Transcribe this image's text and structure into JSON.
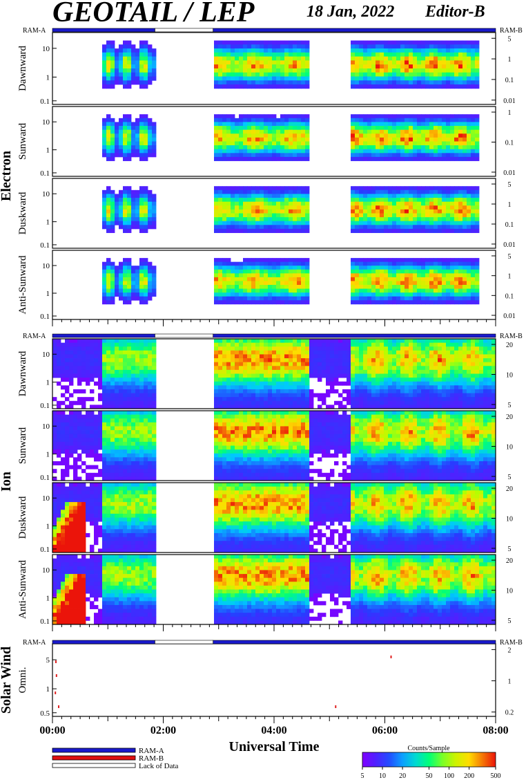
{
  "header": {
    "title": "GEOTAIL / LEP",
    "date": "18 Jan, 2022",
    "editor": "Editor-B"
  },
  "ram_labels": {
    "left": "RAM-A",
    "right": "RAM-B"
  },
  "groups": [
    {
      "name": "Electron",
      "panels": [
        {
          "label": "Dawnward",
          "left_ticks": [
            "10",
            "1",
            "0.1"
          ],
          "right_ticks": [
            "5",
            "1",
            "0.1",
            "0.01"
          ]
        },
        {
          "label": "Sunward",
          "left_ticks": [
            "10",
            "1",
            "0.1"
          ],
          "right_ticks": [
            "1",
            "0.1",
            "0.01"
          ]
        },
        {
          "label": "Duskward",
          "left_ticks": [
            "10",
            "1",
            "0.1"
          ],
          "right_ticks": [
            "5",
            "1",
            "0.1",
            "0.01"
          ]
        },
        {
          "label": "Anti-Sunward",
          "left_ticks": [
            "10",
            "1",
            "0.1"
          ],
          "right_ticks": [
            "5",
            "1",
            "0.1",
            "0.01"
          ]
        }
      ]
    },
    {
      "name": "Ion",
      "panels": [
        {
          "label": "Dawnward",
          "left_ticks": [
            "10",
            "1",
            "0.1"
          ],
          "right_ticks": [
            "20",
            "10",
            "5"
          ]
        },
        {
          "label": "Sunward",
          "left_ticks": [
            "10",
            "1",
            "0.1"
          ],
          "right_ticks": [
            "20",
            "10",
            "5"
          ]
        },
        {
          "label": "Duskward",
          "left_ticks": [
            "10",
            "1",
            "0.1"
          ],
          "right_ticks": [
            "20",
            "10",
            "5"
          ]
        },
        {
          "label": "Anti-Sunward",
          "left_ticks": [
            "10",
            "1",
            "0.1"
          ],
          "right_ticks": [
            "20",
            "10",
            "5"
          ]
        }
      ]
    },
    {
      "name": "Solar Wind",
      "panels": [
        {
          "label": "Omni.",
          "left_ticks": [
            "5",
            "1",
            "0.5"
          ],
          "right_ticks": [
            "2",
            "1",
            "0.2"
          ]
        }
      ]
    }
  ],
  "x_tick_labels": [
    "00:00",
    "02:00",
    "04:00",
    "06:00",
    "08:00"
  ],
  "x_axis_label": "Universal Time",
  "legend": {
    "ram_a": "RAM-A",
    "ram_b": "RAM-B",
    "lack": "Lack of Data"
  },
  "colorbar": {
    "title": "Counts/Sample",
    "ticks": [
      "5",
      "10",
      "20",
      "50",
      "100",
      "200",
      "500"
    ]
  },
  "colors": {
    "ram_a": "#1a1acc",
    "ram_b": "#e01010"
  },
  "chart_data": {
    "type": "heatmap",
    "x": {
      "unit": "UT hours",
      "range": [
        0,
        8
      ],
      "ticks": [
        0,
        2,
        4,
        6,
        8
      ]
    },
    "data_gaps_ut": [
      [
        1.85,
        2.9
      ]
    ],
    "ram_bar_segments": [
      {
        "from": 0,
        "to": 1.85,
        "state": "RAM-A"
      },
      {
        "from": 1.85,
        "to": 2.9,
        "state": "Lack of Data"
      },
      {
        "from": 2.9,
        "to": 8,
        "state": "RAM-A"
      }
    ],
    "color_scale": {
      "unit": "Counts/Sample",
      "log": true,
      "range": [
        5,
        500
      ]
    }
  }
}
